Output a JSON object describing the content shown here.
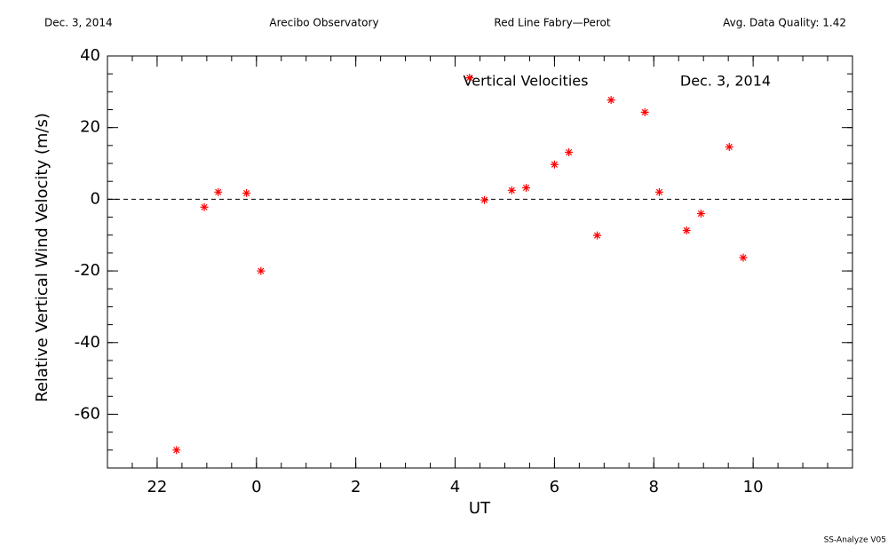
{
  "chart_data": {
    "type": "scatter",
    "header": [
      "Dec. 3, 2014",
      "Arecibo Observatory",
      "Red Line Fabry—Perot",
      "Avg. Data Quality: 1.42"
    ],
    "annotations": [
      "Vertical Velocities",
      "Dec. 3, 2014"
    ],
    "footer": "SS-Analyze V05",
    "xlabel": "UT",
    "ylabel": "Relative Vertical Wind Velocity (m/s)",
    "x": [
      -1.61,
      -1.05,
      -0.77,
      -0.2,
      0.09,
      4.29,
      4.59,
      5.14,
      5.43,
      6.0,
      6.29,
      6.86,
      7.14,
      7.82,
      8.11,
      8.66,
      8.95,
      9.52,
      9.8
    ],
    "values": [
      -70,
      -2.2,
      2.0,
      1.7,
      -20,
      33.9,
      -0.2,
      2.5,
      3.2,
      9.7,
      13.1,
      -10.1,
      27.7,
      24.3,
      2.0,
      -8.7,
      -4.0,
      14.6,
      -16.3
    ],
    "color": "#ff0000",
    "xlim": [
      -3,
      12
    ],
    "xticks": [
      {
        "value": -2,
        "label": "22"
      },
      0,
      2,
      4,
      6,
      8,
      10
    ],
    "xminor": 0.5,
    "ylim": [
      -75,
      40
    ],
    "yticks": [
      40,
      20,
      0,
      -20,
      -40,
      -60
    ],
    "yminor": 5,
    "reference_line": 0
  }
}
